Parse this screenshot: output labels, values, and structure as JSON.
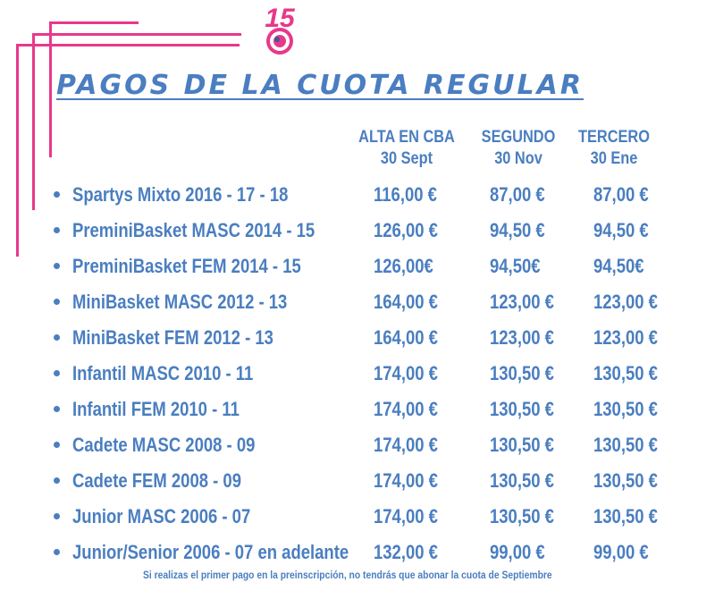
{
  "logo": {
    "text": "15",
    "icon": "club-anniversary-logo",
    "accent": "#e8388a"
  },
  "title": "PAGOS DE LA CUOTA REGULAR",
  "colors": {
    "text": "#4a7ec0",
    "accent": "#e8388a"
  },
  "columns": [
    {
      "label": "ALTA EN CBA",
      "date": "30 Sept"
    },
    {
      "label": "SEGUNDO",
      "date": "30 Nov"
    },
    {
      "label": "TERCERO",
      "date": "30 Ene"
    }
  ],
  "rows": [
    {
      "name": "Spartys Mixto 2016 - 17 - 18",
      "alta": "116,00 €",
      "segundo": "87,00 €",
      "tercero": "87,00 €"
    },
    {
      "name": "PreminiBasket MASC 2014 - 15",
      "alta": "126,00 €",
      "segundo": "94,50 €",
      "tercero": "94,50 €"
    },
    {
      "name": "PreminiBasket FEM 2014 - 15",
      "alta": "126,00€",
      "segundo": "94,50€",
      "tercero": "94,50€"
    },
    {
      "name": "MiniBasket MASC 2012 - 13",
      "alta": "164,00 €",
      "segundo": "123,00 €",
      "tercero": "123,00 €"
    },
    {
      "name": "MiniBasket FEM 2012 - 13",
      "alta": "164,00 €",
      "segundo": "123,00 €",
      "tercero": "123,00 €"
    },
    {
      "name": "Infantil MASC 2010 - 11",
      "alta": "174,00 €",
      "segundo": "130,50 €",
      "tercero": "130,50 €"
    },
    {
      "name": "Infantil FEM 2010 - 11",
      "alta": "174,00 €",
      "segundo": "130,50 €",
      "tercero": "130,50 €"
    },
    {
      "name": "Cadete MASC 2008 - 09",
      "alta": "174,00 €",
      "segundo": "130,50 €",
      "tercero": "130,50 €"
    },
    {
      "name": "Cadete FEM 2008 - 09",
      "alta": "174,00 €",
      "segundo": "130,50 €",
      "tercero": "130,50 €"
    },
    {
      "name": "Junior MASC 2006 - 07",
      "alta": "174,00 €",
      "segundo": "130,50 €",
      "tercero": "130,50 €"
    },
    {
      "name": "Junior/Senior 2006 - 07 en adelante",
      "alta": "132,00 €",
      "segundo": "99,00 €",
      "tercero": "99,00 €"
    }
  ],
  "footnote": "Si realizas el primer pago en la preinscripción, no tendrás que abonar la cuota de Septiembre"
}
